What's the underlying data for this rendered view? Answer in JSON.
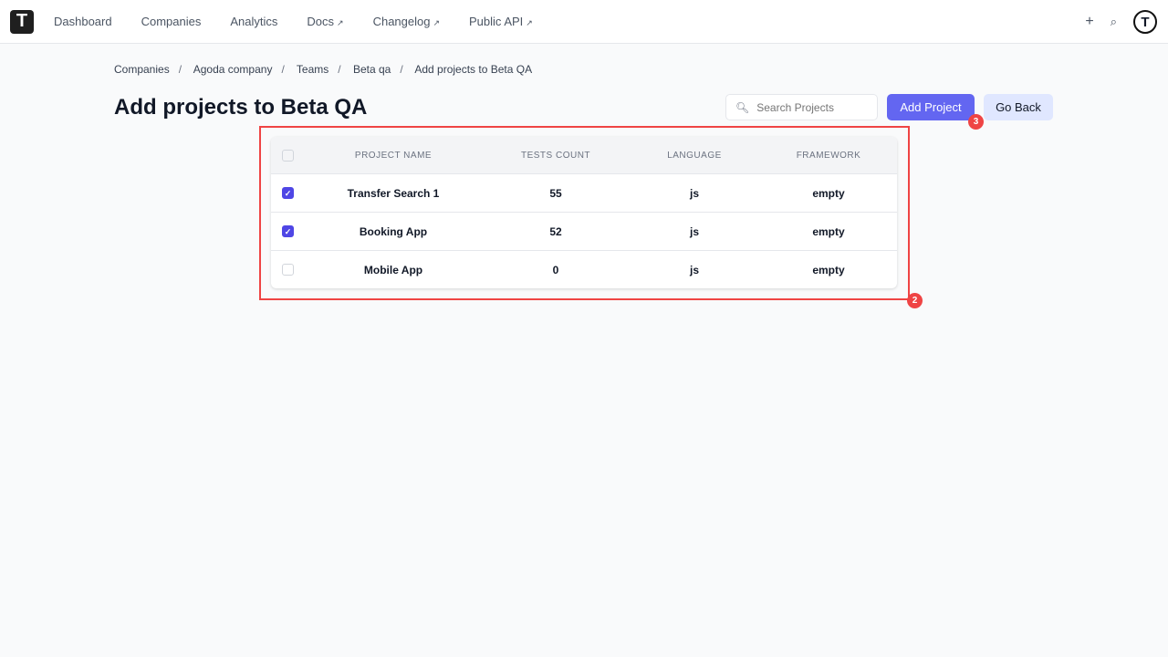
{
  "nav": {
    "logo": "T",
    "items": [
      {
        "label": "Dashboard"
      },
      {
        "label": "Companies"
      },
      {
        "label": "Analytics"
      },
      {
        "label": "Docs",
        "external": true
      },
      {
        "label": "Changelog",
        "external": true
      },
      {
        "label": "Public API",
        "external": true
      }
    ],
    "plus": "+",
    "avatar": "T"
  },
  "breadcrumb": [
    "Companies",
    "Agoda company",
    "Teams",
    "Beta qa",
    "Add projects to Beta QA"
  ],
  "title": "Add projects to Beta QA",
  "search": {
    "placeholder": "Search Projects",
    "value": ""
  },
  "buttons": {
    "add": "Add Project",
    "back": "Go Back"
  },
  "table": {
    "headers": [
      "PROJECT NAME",
      "TESTS COUNT",
      "LANGUAGE",
      "FRAMEWORK"
    ],
    "rows": [
      {
        "checked": true,
        "name": "Transfer Search 1",
        "tests": "55",
        "language": "js",
        "framework": "empty"
      },
      {
        "checked": true,
        "name": "Booking App",
        "tests": "52",
        "language": "js",
        "framework": "empty"
      },
      {
        "checked": false,
        "name": "Mobile App",
        "tests": "0",
        "language": "js",
        "framework": "empty"
      }
    ]
  },
  "annotations": {
    "table": "2",
    "add": "3"
  },
  "colors": {
    "accent": "#6366f1",
    "annotation": "#ef4444"
  }
}
